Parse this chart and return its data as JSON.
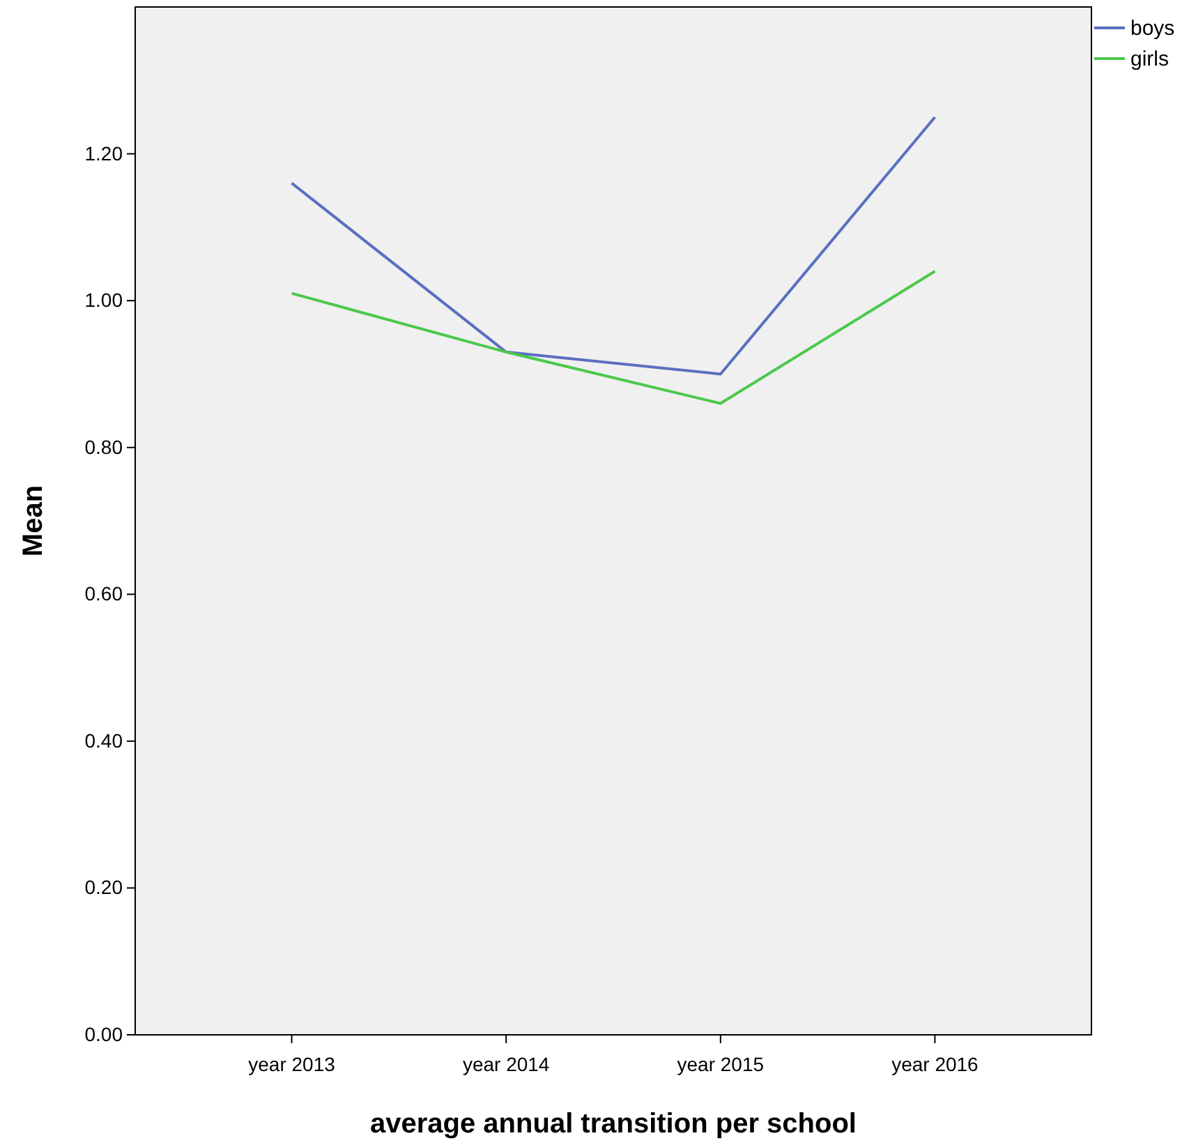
{
  "chart_data": {
    "type": "line",
    "xlabel": "average annual transition per school",
    "ylabel": "Mean",
    "categories": [
      "year 2013",
      "year 2014",
      "year 2015",
      "year 2016"
    ],
    "series": [
      {
        "name": "boys",
        "color": "#5a6fc0",
        "values": [
          1.16,
          0.93,
          0.9,
          1.25
        ]
      },
      {
        "name": "girls",
        "color": "#4cc84c",
        "values": [
          1.01,
          0.93,
          0.86,
          1.04
        ]
      }
    ],
    "ylim": [
      0,
      1.4
    ],
    "yticks": [
      {
        "value": 0,
        "label": "0.00"
      },
      {
        "value": 0.2,
        "label": "0.20"
      },
      {
        "value": 0.4,
        "label": "0.40"
      },
      {
        "value": 0.6,
        "label": "0.60"
      },
      {
        "value": 0.8,
        "label": "0.80"
      },
      {
        "value": 1,
        "label": "1.00"
      },
      {
        "value": 1.2,
        "label": "1.20"
      }
    ],
    "grid": false,
    "legend": "top right",
    "marker": "none",
    "line_style": "solid"
  }
}
